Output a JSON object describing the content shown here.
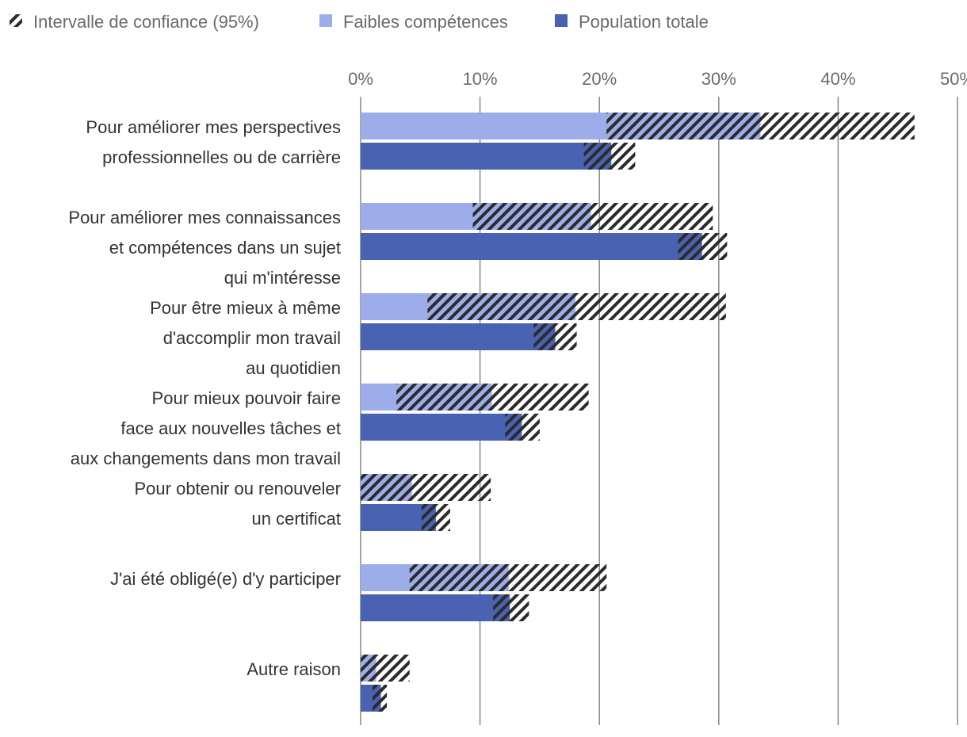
{
  "chart_data": {
    "type": "bar",
    "orientation": "horizontal",
    "legend": {
      "placement": "top-left",
      "items": [
        {
          "key": "ci",
          "label": "Intervalle de confiance (95%)"
        },
        {
          "key": "low",
          "label": "Faibles compétences"
        },
        {
          "key": "total",
          "label": "Population totale"
        }
      ]
    },
    "xlim": [
      0,
      50
    ],
    "x_ticks": [
      "0%",
      "10%",
      "20%",
      "30%",
      "40%",
      "50%"
    ],
    "x_tick_values": [
      0,
      10,
      20,
      30,
      40,
      50
    ],
    "grid": true,
    "colors": {
      "low": "#9dadea",
      "total": "#4a62b2",
      "ci": "#2b2b2b",
      "grid": "#888888"
    },
    "categories": [
      {
        "lines": [
          "Pour améliorer mes perspectives",
          "professionnelles ou de carrière"
        ]
      },
      {
        "lines": [
          "Pour améliorer mes connaissances",
          "et compétences dans un sujet",
          "qui m'intéresse"
        ]
      },
      {
        "lines": [
          "Pour être mieux à même",
          "d'accomplir mon travail",
          "au quotidien"
        ]
      },
      {
        "lines": [
          "Pour mieux pouvoir faire",
          "face aux nouvelles tâches et",
          "aux changements dans mon travail"
        ]
      },
      {
        "lines": [
          "Pour obtenir ou renouveler",
          "un certificat"
        ]
      },
      {
        "lines": [
          "J'ai été obligé(e) d'y participer"
        ]
      },
      {
        "lines": [
          "Autre raison"
        ]
      }
    ],
    "series": [
      {
        "name": "Faibles compétences",
        "key": "low",
        "values": [
          33.5,
          19.3,
          18.0,
          11.0,
          4.3,
          12.4,
          1.3
        ],
        "ci_low": [
          20.6,
          9.4,
          5.6,
          3.0,
          0.0,
          4.1,
          0.0
        ],
        "ci_high": [
          46.4,
          29.5,
          30.6,
          19.1,
          10.9,
          20.6,
          4.1
        ]
      },
      {
        "name": "Population totale",
        "key": "total",
        "values": [
          21.0,
          28.6,
          16.3,
          13.5,
          6.3,
          12.5,
          1.7
        ],
        "ci_low": [
          18.7,
          26.6,
          14.5,
          12.1,
          5.1,
          11.1,
          1.0
        ],
        "ci_high": [
          23.0,
          30.7,
          18.1,
          15.0,
          7.5,
          14.1,
          2.2
        ]
      }
    ]
  }
}
